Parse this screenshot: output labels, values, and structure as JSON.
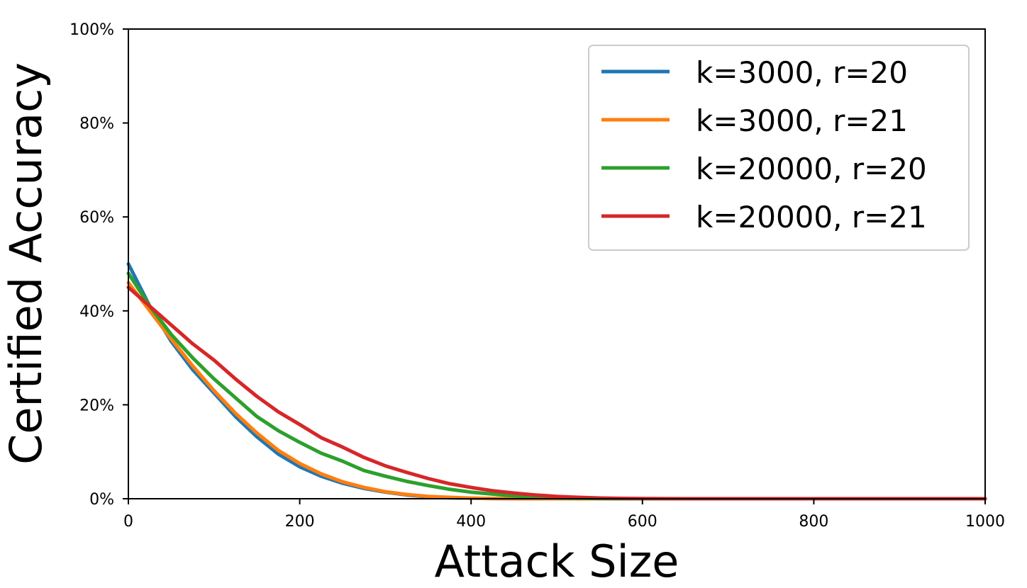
{
  "chart_data": {
    "type": "line",
    "title": "",
    "xlabel": "Attack Size",
    "ylabel": "Certified Accuracy",
    "xlim": [
      0,
      1000
    ],
    "ylim": [
      0,
      100
    ],
    "xticks": [
      0,
      200,
      400,
      600,
      800,
      1000
    ],
    "xtick_labels": [
      "0",
      "200",
      "400",
      "600",
      "800",
      "1000"
    ],
    "yticks": [
      0,
      20,
      40,
      60,
      80,
      100
    ],
    "ytick_labels": [
      "0%",
      "20%",
      "40%",
      "60%",
      "80%",
      "100%"
    ],
    "grid": false,
    "legend_position": "top-right",
    "x": [
      0,
      25,
      50,
      75,
      100,
      125,
      150,
      175,
      200,
      225,
      250,
      275,
      300,
      325,
      350,
      375,
      400,
      425,
      450,
      475,
      500,
      525,
      550,
      575,
      600,
      650,
      700,
      800,
      900,
      1000
    ],
    "series": [
      {
        "name": "k=3000, r=20",
        "color": "#1f77b4",
        "values": [
          50.0,
          41.0,
          33.5,
          27.5,
          22.5,
          17.5,
          13.2,
          9.5,
          6.8,
          4.8,
          3.3,
          2.2,
          1.4,
          0.8,
          0.4,
          0.2,
          0.1,
          0.05,
          0,
          0,
          0,
          0,
          0,
          0,
          0,
          0,
          0,
          0,
          0,
          0
        ]
      },
      {
        "name": "k=3000, r=21",
        "color": "#ff7f0e",
        "values": [
          46.0,
          40.0,
          34.0,
          28.3,
          23.0,
          18.2,
          14.0,
          10.3,
          7.5,
          5.3,
          3.6,
          2.4,
          1.5,
          0.9,
          0.5,
          0.3,
          0.1,
          0.05,
          0,
          0,
          0,
          0,
          0,
          0,
          0,
          0,
          0,
          0,
          0,
          0
        ]
      },
      {
        "name": "k=20000, r=20",
        "color": "#2ca02c",
        "values": [
          48.0,
          41.0,
          35.0,
          30.0,
          25.5,
          21.5,
          17.5,
          14.5,
          12.0,
          9.7,
          8.0,
          6.0,
          4.8,
          3.7,
          2.8,
          2.0,
          1.4,
          1.0,
          0.6,
          0.35,
          0.2,
          0.1,
          0.05,
          0,
          0,
          0,
          0,
          0,
          0,
          0
        ]
      },
      {
        "name": "k=20000, r=21",
        "color": "#d62728",
        "values": [
          45.0,
          41.0,
          37.0,
          33.0,
          29.5,
          25.5,
          21.8,
          18.5,
          15.8,
          13.0,
          11.0,
          8.8,
          7.0,
          5.6,
          4.3,
          3.2,
          2.4,
          1.7,
          1.2,
          0.8,
          0.5,
          0.3,
          0.15,
          0.08,
          0.05,
          0,
          0,
          0,
          0,
          0
        ]
      }
    ]
  }
}
